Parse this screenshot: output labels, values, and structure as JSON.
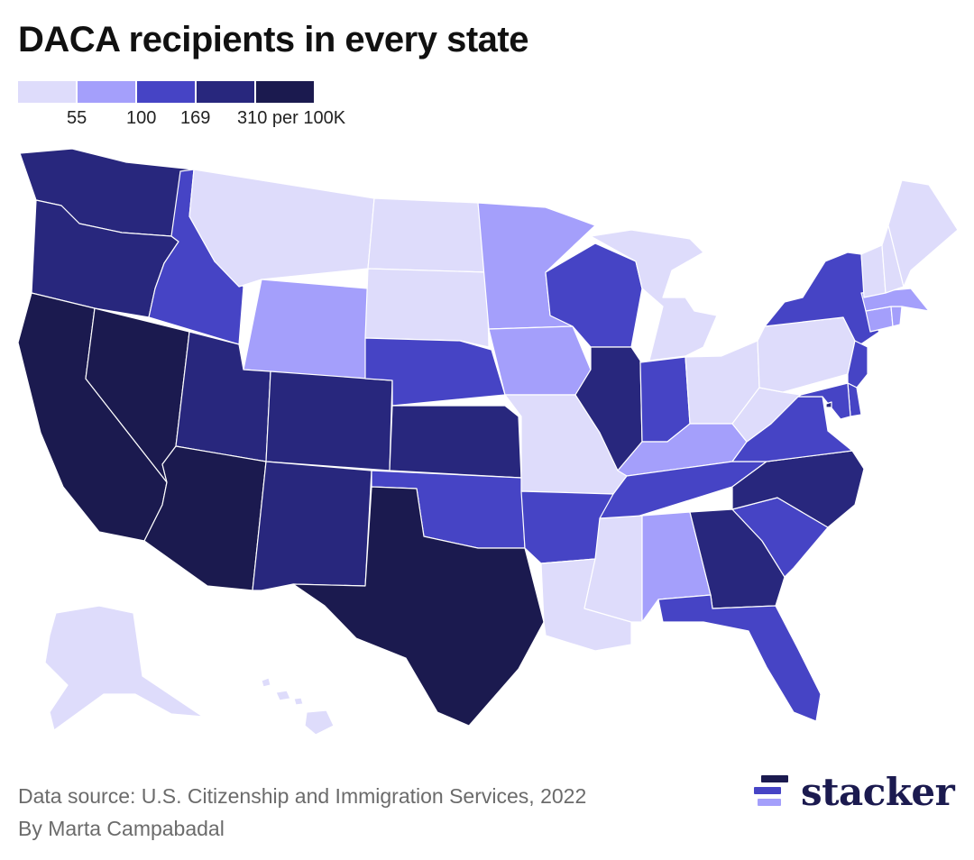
{
  "title": "DACA recipients in every state",
  "legend": {
    "colors": [
      "#dedcfb",
      "#a49ffb",
      "#4644c5",
      "#28277d",
      "#1b1a4f"
    ],
    "labels": [
      "55",
      "100",
      "169",
      "310 per 100K"
    ]
  },
  "footer": {
    "source": "Data source: U.S. Citizenship and Immigration Services, 2022",
    "byline": "By Marta Campabadal"
  },
  "brand": {
    "name": "stacker",
    "mark_colors": [
      "#1b1a4f",
      "#4644c5",
      "#a49ffb"
    ]
  },
  "map_data": {
    "classes": {
      "WA": 3,
      "OR": 3,
      "CA": 4,
      "NV": 4,
      "ID": 2,
      "MT": 0,
      "WY": 1,
      "UT": 3,
      "AZ": 4,
      "CO": 3,
      "NM": 3,
      "ND": 0,
      "SD": 0,
      "NE": 2,
      "KS": 3,
      "OK": 2,
      "TX": 4,
      "MN": 1,
      "IA": 1,
      "MO": 0,
      "AR": 2,
      "LA": 0,
      "WI": 2,
      "IL": 3,
      "MI": 0,
      "IN": 2,
      "OH": 0,
      "KY": 1,
      "TN": 2,
      "MS": 0,
      "AL": 1,
      "GA": 3,
      "FL": 2,
      "SC": 2,
      "NC": 3,
      "VA": 2,
      "WV": 0,
      "PA": 0,
      "NY": 2,
      "NJ": 2,
      "DE": 2,
      "MD": 2,
      "DC": 3,
      "CT": 1,
      "RI": 1,
      "MA": 1,
      "VT": 0,
      "NH": 0,
      "ME": 0,
      "AK": 0,
      "HI": 0
    }
  }
}
